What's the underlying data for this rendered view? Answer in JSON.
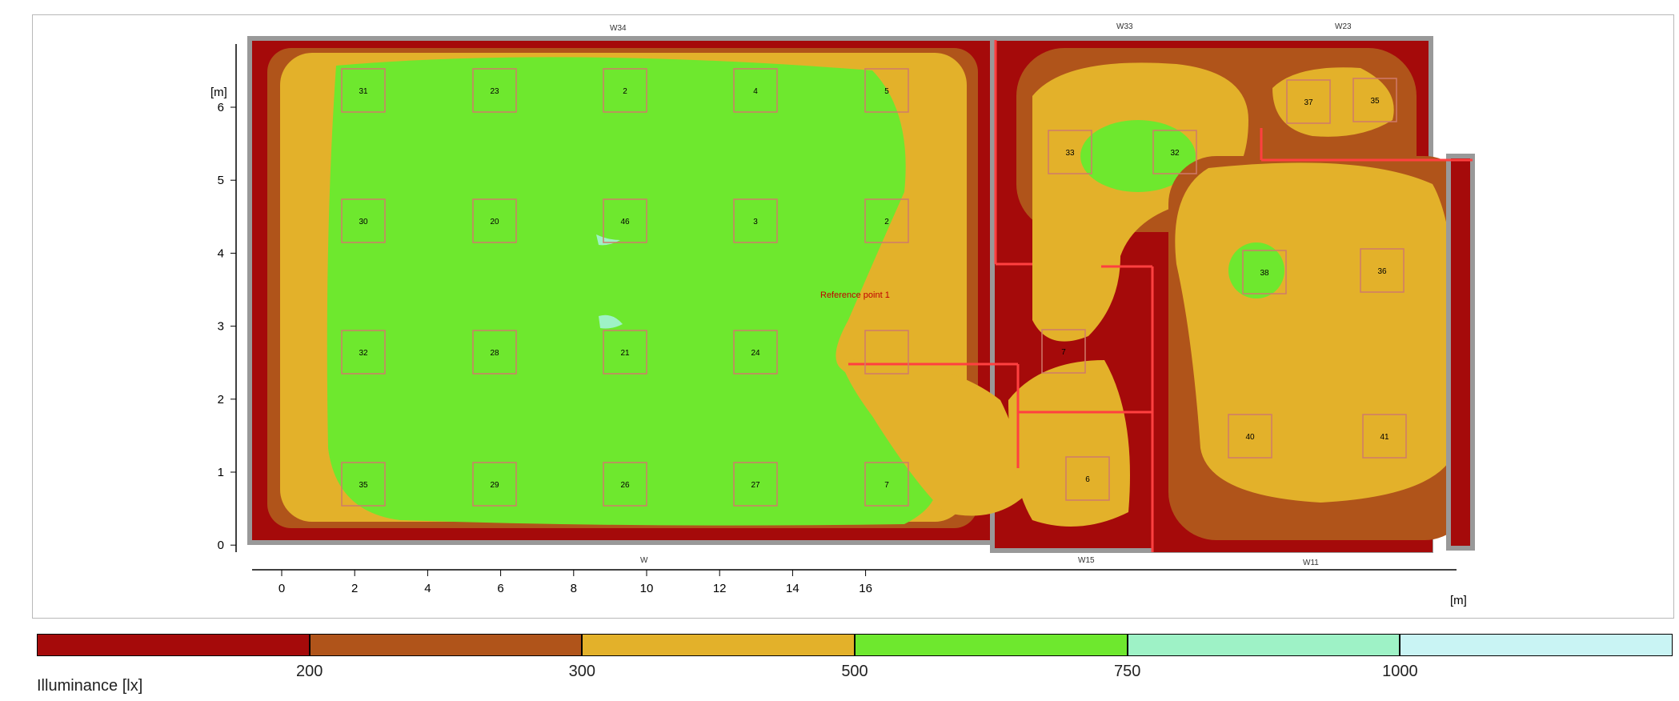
{
  "plot": {
    "y_unit": "[m]",
    "x_unit": "[m]",
    "x_ticks": [
      "0",
      "2",
      "4",
      "6",
      "8",
      "10",
      "12",
      "14",
      "16"
    ],
    "y_ticks": [
      "6",
      "5",
      "4",
      "3",
      "2",
      "1",
      "0"
    ],
    "reference_label": "Reference point 1",
    "wall_labels": [
      "W34",
      "W33",
      "W23",
      "W",
      "W15",
      "W11"
    ]
  },
  "luminaires": {
    "hall": [
      [
        "31",
        "23",
        "2",
        "4",
        "5"
      ],
      [
        "30",
        "20",
        "46",
        "3",
        "2"
      ],
      [
        "32",
        "28",
        "21",
        "24",
        ""
      ],
      [
        "35",
        "29",
        "26",
        "27",
        "7"
      ]
    ],
    "rooms": [
      "33",
      "32",
      "37",
      "35",
      "38",
      "36",
      "7",
      "6",
      "40",
      "41"
    ]
  },
  "legend": {
    "title": "Illuminance [lx]",
    "ticks": [
      "200",
      "300",
      "500",
      "750",
      "1000"
    ],
    "colors": [
      "#a50a0a",
      "#b0541a",
      "#e3b12a",
      "#6ee82e",
      "#9ef2c6",
      "#c9f4f4"
    ]
  }
}
